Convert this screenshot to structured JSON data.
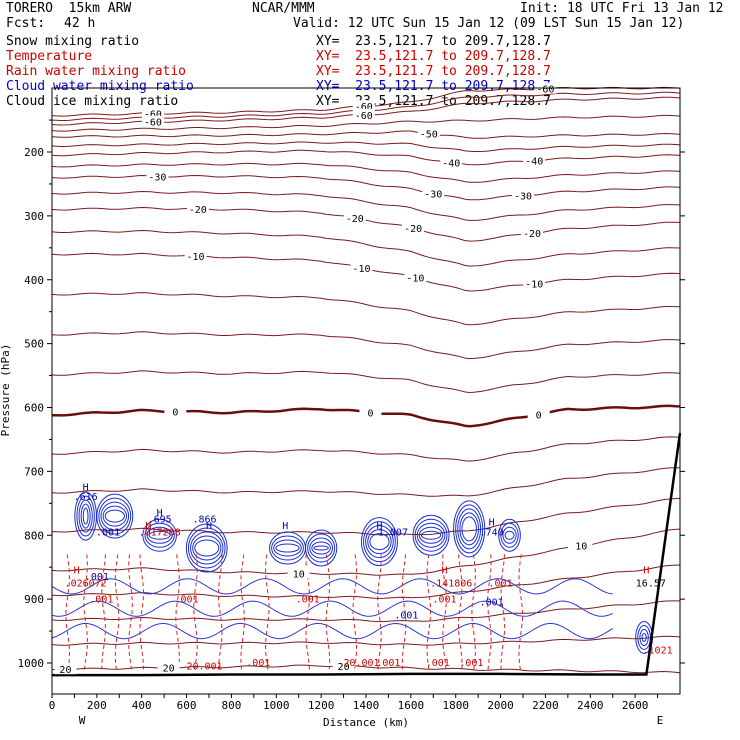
{
  "header": {
    "model": "TORERO  15km ARW",
    "center": "NCAR/MMM",
    "init": "Init: 18 UTC Fri 13 Jan 12",
    "fcst_label": "Fcst:",
    "fcst_value": "42 h",
    "valid": "Valid: 12 UTC Sun 15 Jan 12 (09 LST Sun 15 Jan 12)"
  },
  "fields": [
    {
      "name": "Snow mixing ratio",
      "xy": "XY=  23.5,121.7 to 209.7,128.7",
      "color": "#000000"
    },
    {
      "name": "Temperature",
      "xy": "XY=  23.5,121.7 to 209.7,128.7",
      "color": "#cc0000"
    },
    {
      "name": "Rain water mixing ratio",
      "xy": "XY=  23.5,121.7 to 209.7,128.7",
      "color": "#cc0000"
    },
    {
      "name": "Cloud water mixing ratio",
      "xy": "XY=  23.5,121.7 to 209.7,128.7",
      "color": "#0000cc"
    },
    {
      "name": "Cloud ice mixing ratio",
      "xy": "XY=  23.5,121.7 to 209.7,128.7",
      "color": "#000000"
    }
  ],
  "chart_data": {
    "type": "contour",
    "xlabel": "Distance (km)",
    "ylabel": "Pressure (hPa)",
    "x_ticks": [
      0,
      100,
      200,
      300,
      400,
      500,
      600,
      700,
      800,
      900,
      1000,
      1100,
      1200,
      1300,
      1400,
      1500,
      1600,
      1700,
      1800,
      1900,
      2000,
      2100,
      2200,
      2300,
      2400,
      2500,
      2600,
      2700
    ],
    "x_tick_labels": [
      "0",
      "200",
      "400",
      "600",
      "800",
      "1000",
      "1200",
      "1400",
      "1600",
      "1800",
      "2000",
      "2200",
      "2400",
      "2600"
    ],
    "xlim": [
      0,
      2800
    ],
    "y_ticks": [
      200,
      300,
      400,
      500,
      600,
      700,
      800,
      900,
      1000
    ],
    "ylim": [
      100,
      1050
    ],
    "left_end_label": "W",
    "right_end_label": "E",
    "temperature_contours": [
      {
        "label": "-60",
        "p": [
          143,
          140,
          138,
          134,
          122,
          104,
          100,
          100
        ],
        "label_x": [
          450,
          1390,
          2200
        ]
      },
      {
        "label": "-60",
        "p": [
          157,
          153,
          150,
          146,
          137,
          124,
          118,
          115
        ],
        "label_x": [
          450,
          1390
        ]
      },
      {
        "label": "-50",
        "p": [
          176,
          175,
          174,
          172,
          168,
          178,
          174,
          172
        ],
        "label_x": [
          1680
        ]
      },
      {
        "label": "-40",
        "p": [
          205,
          202,
          200,
          198,
          207,
          220,
          210,
          205
        ],
        "label_x": [
          1780,
          2150
        ]
      },
      {
        "label": "-30",
        "p": [
          240,
          238,
          238,
          240,
          258,
          275,
          262,
          255
        ],
        "label_x": [
          470,
          1700,
          2100
        ]
      },
      {
        "label": "-20",
        "p": [
          290,
          288,
          290,
          295,
          318,
          340,
          320,
          310
        ],
        "label_x": [
          650,
          1350,
          1610,
          2140
        ]
      },
      {
        "label": "-10",
        "p": [
          360,
          360,
          365,
          370,
          395,
          418,
          400,
          390
        ],
        "label_x": [
          640,
          1380,
          1620,
          2150
        ]
      },
      {
        "label": "0",
        "p": [
          612,
          605,
          608,
          602,
          612,
          630,
          603,
          598
        ],
        "label_x": [
          550,
          1420,
          2170
        ]
      },
      {
        "label": "10",
        "p": [
          855,
          852,
          858,
          860,
          862,
          848,
          820,
          790
        ],
        "label_x": [
          1100,
          2350,
          2360
        ]
      },
      {
        "label": "20",
        "p": [
          1010,
          1008,
          1006,
          1004,
          1008,
          1010,
          1012,
          1015
        ],
        "label_x": [
          60,
          520,
          1300
        ]
      }
    ],
    "temperature_levels_unlabeled_count": 14,
    "rain_water_labels": [
      {
        "text": ".001",
        "x": 220,
        "p": 905
      },
      {
        "text": ".001",
        "x": 600,
        "p": 905
      },
      {
        "text": ".001",
        "x": 1140,
        "p": 905
      },
      {
        "text": ".001",
        "x": 1750,
        "p": 905
      },
      {
        "text": ".001",
        "x": 2000,
        "p": 880
      },
      {
        "text": ".001",
        "x": 920,
        "p": 1005
      },
      {
        "text": ".001",
        "x": 1500,
        "p": 1005
      },
      {
        "text": ".001",
        "x": 1720,
        "p": 1005
      },
      {
        "text": ".001",
        "x": 1870,
        "p": 1005
      },
      {
        "text": "20.001",
        "x": 680,
        "p": 1010
      },
      {
        "text": "20.001",
        "x": 1380,
        "p": 1005
      },
      {
        "text": ".017268",
        "x": 480,
        "p": 800
      },
      {
        "text": ".141806",
        "x": 1780,
        "p": 880
      },
      {
        "text": ".026072",
        "x": 150,
        "p": 880
      },
      {
        "text": ".1021",
        "x": 2700,
        "p": 985
      }
    ],
    "cloud_water_labels": [
      {
        "text": ".616",
        "x": 150,
        "p": 745
      },
      {
        "text": ".695",
        "x": 480,
        "p": 780
      },
      {
        "text": ".866",
        "x": 680,
        "p": 780
      },
      {
        "text": ".001",
        "x": 250,
        "p": 800
      },
      {
        "text": ".001",
        "x": 200,
        "p": 870
      },
      {
        "text": "1.007",
        "x": 1520,
        "p": 800
      },
      {
        "text": ".740",
        "x": 1960,
        "p": 800
      },
      {
        "text": ".001",
        "x": 1580,
        "p": 930
      },
      {
        "text": ".001",
        "x": 1960,
        "p": 910
      },
      {
        "text": "16.57",
        "x": 2670,
        "p": 880
      }
    ],
    "maxima_markers": [
      {
        "text": "H",
        "x": 150,
        "p": 730,
        "color": "#0000cc"
      },
      {
        "text": "H",
        "x": 480,
        "p": 770,
        "color": "#0000cc"
      },
      {
        "text": "H",
        "x": 700,
        "p": 790,
        "color": "#0000cc"
      },
      {
        "text": "H",
        "x": 1040,
        "p": 790,
        "color": "#0000cc"
      },
      {
        "text": "H",
        "x": 1460,
        "p": 790,
        "color": "#0000cc"
      },
      {
        "text": "H",
        "x": 1960,
        "p": 785,
        "color": "#0000cc"
      },
      {
        "text": "H",
        "x": 2650,
        "p": 860,
        "color": "#cc0000"
      },
      {
        "text": "H",
        "x": 110,
        "p": 860,
        "color": "#cc0000"
      },
      {
        "text": "H",
        "x": 430,
        "p": 790,
        "color": "#cc0000"
      },
      {
        "text": "H",
        "x": 1750,
        "p": 860,
        "color": "#cc0000"
      }
    ],
    "terrain": {
      "p_surface": [
        1019,
        1019,
        1018,
        1018,
        1017,
        1017,
        1018,
        1018,
        1018,
        640
      ],
      "x": [
        0,
        400,
        800,
        1200,
        1600,
        2000,
        2400,
        2600,
        2650,
        2800
      ]
    }
  }
}
